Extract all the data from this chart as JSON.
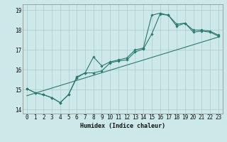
{
  "xlabel": "Humidex (Indice chaleur)",
  "background_color": "#cce8e8",
  "grid_color": "#aacccc",
  "line_color": "#2a7a6e",
  "xlim": [
    -0.5,
    23.5
  ],
  "ylim": [
    13.8,
    19.3
  ],
  "xticks": [
    0,
    1,
    2,
    3,
    4,
    5,
    6,
    7,
    8,
    9,
    10,
    11,
    12,
    13,
    14,
    15,
    16,
    17,
    18,
    19,
    20,
    21,
    22,
    23
  ],
  "yticks": [
    14,
    15,
    16,
    17,
    18,
    19
  ],
  "line1_x": [
    0,
    1,
    2,
    3,
    4,
    5,
    6,
    7,
    8,
    9,
    10,
    11,
    12,
    13,
    14,
    15,
    16,
    17,
    18,
    19,
    20,
    21,
    22,
    23
  ],
  "line1_y": [
    15.05,
    14.85,
    14.75,
    14.6,
    14.35,
    14.75,
    15.6,
    15.85,
    15.85,
    15.95,
    16.35,
    16.45,
    16.5,
    16.9,
    17.05,
    17.8,
    18.8,
    18.75,
    18.2,
    18.35,
    17.9,
    17.95,
    17.9,
    17.7
  ],
  "line2_x": [
    0,
    1,
    2,
    3,
    4,
    5,
    6,
    7,
    8,
    9,
    10,
    11,
    12,
    13,
    14,
    15,
    16,
    17,
    18,
    19,
    20,
    21,
    22,
    23
  ],
  "line2_y": [
    15.05,
    14.85,
    14.75,
    14.6,
    14.35,
    14.75,
    15.65,
    15.85,
    16.65,
    16.2,
    16.4,
    16.5,
    16.6,
    17.0,
    17.1,
    18.75,
    18.85,
    18.75,
    18.3,
    18.35,
    18.0,
    18.0,
    17.95,
    17.75
  ],
  "line3_x": [
    0,
    23
  ],
  "line3_y": [
    14.7,
    17.65
  ]
}
